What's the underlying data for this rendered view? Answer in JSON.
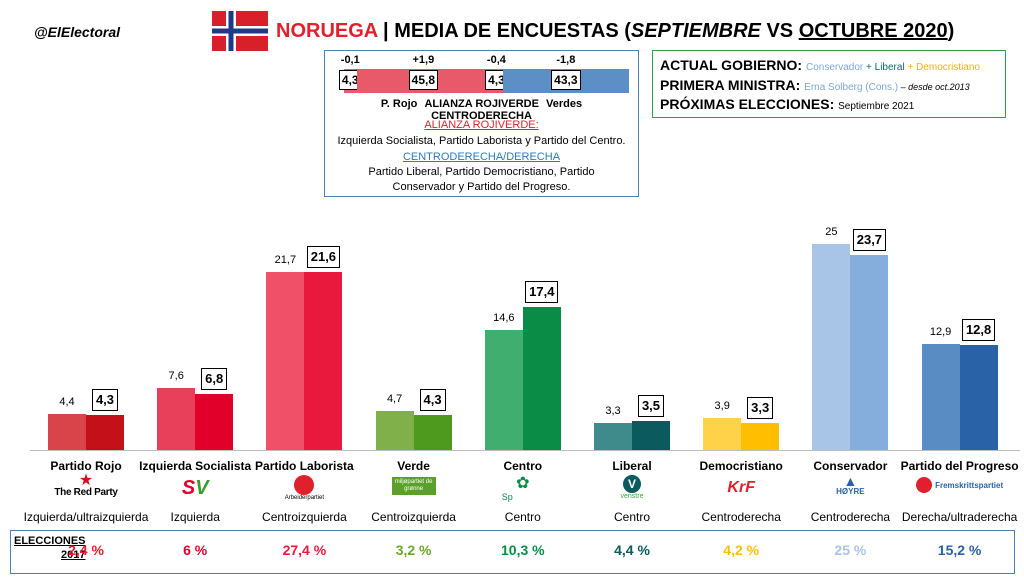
{
  "header": {
    "handle": "@ElElectoral",
    "country": "NORUEGA",
    "sep": " | MEDIA DE ENCUESTAS (",
    "month1": "SEPTIEMBRE",
    "vs": " VS ",
    "month2": "OCTUBRE 2020",
    "close": ")"
  },
  "blocs": {
    "deltas": [
      "-0,1",
      "+1,9",
      "-0,4",
      "-1,8"
    ],
    "values": [
      "4,3",
      "45,8",
      "4,3",
      "43,3"
    ],
    "shares": [
      4.3,
      45.8,
      4.3,
      43.3
    ],
    "colors": [
      "#e8596a",
      "#e8596a",
      "#e8596a",
      "#5b8fc6"
    ],
    "labels": [
      "P. Rojo",
      "ALIANZA ROJIVERDE",
      "Verdes",
      "CENTRODERECHA"
    ],
    "alianza_title": "ALIANZA ROJIVERDE:",
    "alianza_desc": "Izquierda Socialista, Partido Laborista y Partido del Centro.",
    "centro_title": "CENTRODERECHA/DERECHA",
    "centro_desc1": "Partido Liberal, Partido Democristiano, Partido",
    "centro_desc2": "Conservador y Partido del Progreso."
  },
  "info": {
    "gov_label": "ACTUAL GOBIERNO:",
    "gov_con": "Conservador",
    "plus": " + ",
    "gov_lib": "Liberal",
    "gov_dem": "Democristiano",
    "pm_label": "PRIMERA MINISTRA:",
    "pm_name": "Erna Solberg (Cons.)",
    "pm_since": " – desde oct.2013",
    "elec_label": "PRÓXIMAS ELECCIONES:",
    "elec_date": "Septiembre 2021"
  },
  "chart_data": {
    "type": "bar",
    "categories": [
      "Partido Rojo",
      "Izquierda Socialista",
      "Partido Laborista",
      "Verde",
      "Centro",
      "Liberal",
      "Democristiano",
      "Conservador",
      "Partido del Progreso"
    ],
    "series": [
      {
        "values": [
          4.4,
          7.6,
          21.7,
          4.7,
          14.6,
          3.3,
          3.9,
          25,
          12.9
        ]
      },
      {
        "values": [
          4.3,
          6.8,
          21.6,
          4.3,
          17.4,
          3.5,
          3.3,
          23.7,
          12.8
        ]
      }
    ],
    "labels_sep": [
      "4,4",
      "7,6",
      "21,7",
      "4,7",
      "14,6",
      "3,3",
      "3,9",
      "25",
      "12,9"
    ],
    "labels_oct": [
      "4,3",
      "6,8",
      "21,6",
      "4,3",
      "17,4",
      "3,5",
      "3,3",
      "23,7",
      "12,8"
    ],
    "colors_sep": [
      "#d9434a",
      "#e8405a",
      "#f05068",
      "#7fb04a",
      "#3fae6e",
      "#3f8a8a",
      "#ffd24a",
      "#a8c4e6",
      "#5a8cc4"
    ],
    "colors_oct": [
      "#c41018",
      "#e0002a",
      "#e8193c",
      "#4e9a1e",
      "#0a8c46",
      "#0a5a5e",
      "#ffbf00",
      "#86aedc",
      "#2a62a8"
    ],
    "ylim": [
      0,
      27
    ]
  },
  "parties": {
    "logos": [
      "The Red Party",
      "SV",
      "Arbeiderpartiet",
      "miljøpartiet de grønne",
      "Sp",
      "venstre",
      "KrF",
      "HØYRE",
      "Fremskrittspartiet"
    ],
    "ideology": [
      "Izquierda/ultraizquierda",
      "Izquierda",
      "Centroizquierda",
      "Centroizquierda",
      "Centro",
      "Centro",
      "Centroderecha",
      "Centroderecha",
      "Derecha/ultraderecha"
    ]
  },
  "elections": {
    "label1": "ELECCIONES",
    "label2": "2017",
    "values": [
      "2,4 %",
      "6 %",
      "27,4 %",
      "3,2 %",
      "10,3 %",
      "4,4 %",
      "4,2 %",
      "25 %",
      "15,2 %"
    ],
    "colors": [
      "#e0202c",
      "#e0002a",
      "#e8193c",
      "#6aa82a",
      "#0a8c46",
      "#0a5a5e",
      "#ffbf00",
      "#a8c4e6",
      "#2a62a8"
    ]
  }
}
